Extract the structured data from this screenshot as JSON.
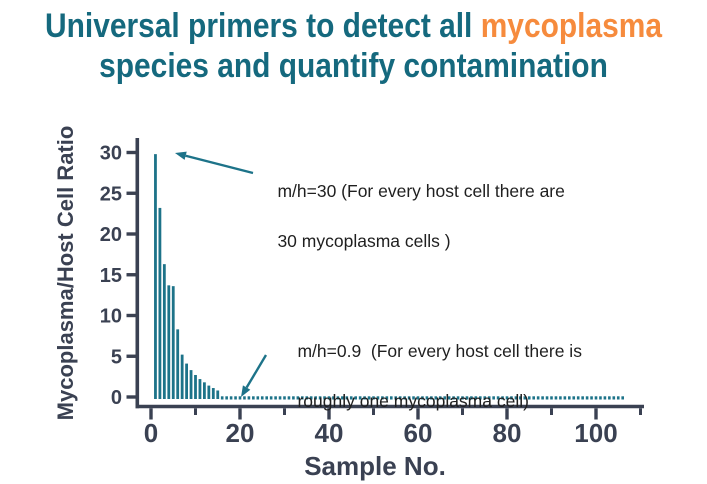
{
  "title": {
    "line1_prefix": "Universal primers to detect all",
    "highlight": "mycoplasma",
    "line2": "species and quantify contamination",
    "color": "#15697e",
    "highlight_color": "#f68b3d"
  },
  "chart_data": {
    "type": "bar",
    "title": "",
    "xlabel": "Sample No.",
    "ylabel": "Mycoplasma/Host Cell Ratio",
    "xlim": [
      0,
      110
    ],
    "ylim": [
      0,
      30
    ],
    "grid": false,
    "legend": "none",
    "yticks": [
      0,
      5,
      10,
      15,
      20,
      25,
      30
    ],
    "xticks_major": [
      0,
      20,
      40,
      60,
      80,
      100
    ],
    "xticks_minor": [
      10,
      30,
      50,
      70,
      90,
      110
    ],
    "bar_color": "#1d7389",
    "axis_color": "#3a4152",
    "bars": {
      "x": [
        1,
        2,
        3,
        4,
        5,
        6,
        7,
        8,
        9,
        10,
        11,
        12,
        13,
        14,
        15
      ],
      "values": [
        29.8,
        23.2,
        16.3,
        13.7,
        13.6,
        8.3,
        5.2,
        4.1,
        3.3,
        2.7,
        2.2,
        1.8,
        1.4,
        1.1,
        0.8
      ]
    },
    "near_zero_tail": {
      "x_start": 16,
      "x_end": 106,
      "value": 0.25
    },
    "annotations": [
      {
        "line1": "m/h=30 (For every host cell there are",
        "line2": "30 mycoplasma cells )"
      },
      {
        "line1": "m/h=0.9  (For every host cell there is",
        "line2": "roughly one mycoplasma cell)"
      }
    ]
  }
}
